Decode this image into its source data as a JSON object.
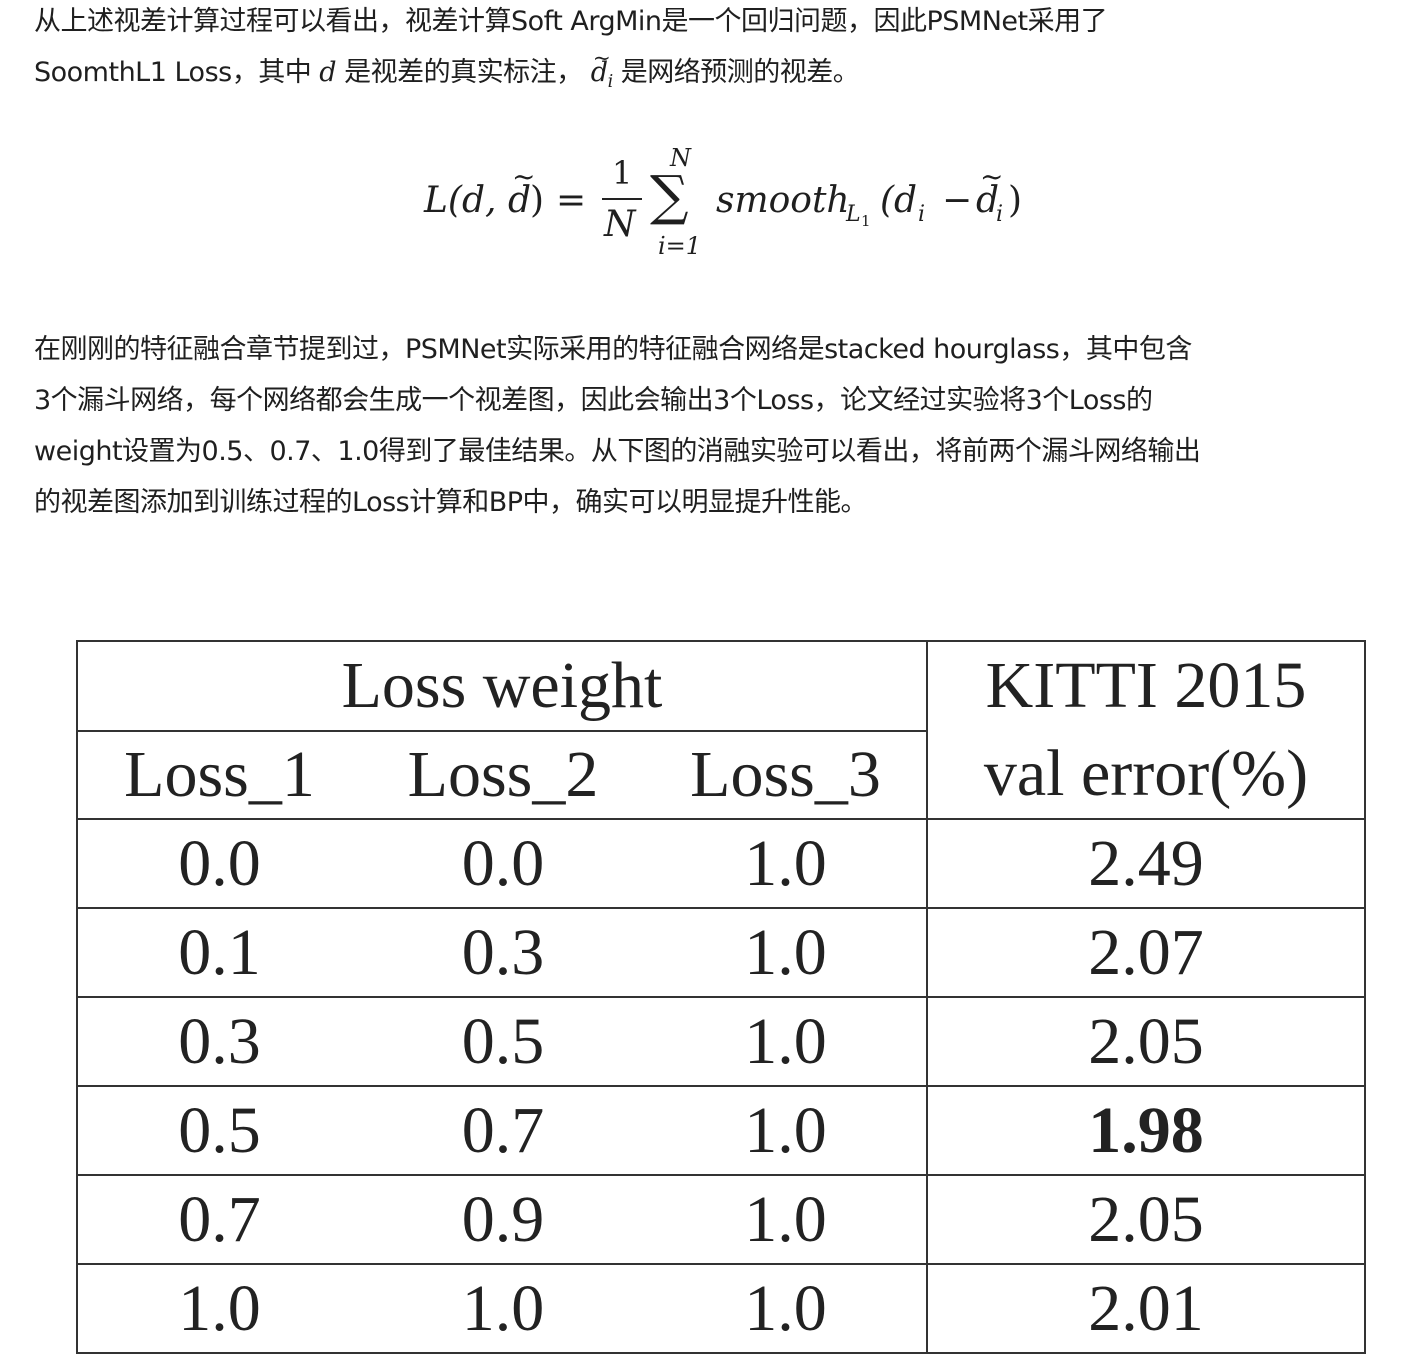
{
  "paragraph1": {
    "line1": "从上述视差计算过程可以看出，视差计算Soft ArgMin是一个回归问题，因此PSMNet采用了",
    "line2_a": "SoomthL1 Loss，其中 ",
    "var_d": "d",
    "line2_b": " 是视差的真实标注，",
    "var_di": "d",
    "var_di_sub": "i",
    "line2_c": " 是网络预测的视差。"
  },
  "formula": {
    "lhs": "L(d,",
    "lhs_d": "d",
    "lhs_close": ")",
    "eq": "=",
    "frac_num": "1",
    "frac_den": "N",
    "sum_top": "N",
    "sum_sign": "∑",
    "sum_bottom": "i=1",
    "func": "smooth",
    "func_sub": "L",
    "func_sub_sub": "1",
    "arg_open": "(d",
    "arg_i": "i",
    "minus": "−",
    "arg_d": "d",
    "arg_i2": "i",
    "arg_close": ")",
    "tilde": "~"
  },
  "paragraph2": {
    "line1": "在刚刚的特征融合章节提到过，PSMNet实际采用的特征融合网络是stacked hourglass，其中包含",
    "line2": "3个漏斗网络，每个网络都会生成一个视差图，因此会输出3个Loss，论文经过实验将3个Loss的",
    "line3": "weight设置为0.5、0.7、1.0得到了最佳结果。从下图的消融实验可以看出，将前两个漏斗网络输出",
    "line4": "的视差图添加到训练过程的Loss计算和BP中，确实可以明显提升性能。"
  },
  "table": {
    "group_header": "Loss weight",
    "metric_header_1": "KITTI 2015",
    "metric_header_2": "val error(%)",
    "columns": [
      "Loss_1",
      "Loss_2",
      "Loss_3"
    ],
    "rows": [
      [
        "0.0",
        "0.0",
        "1.0",
        "2.49"
      ],
      [
        "0.1",
        "0.3",
        "1.0",
        "2.07"
      ],
      [
        "0.3",
        "0.5",
        "1.0",
        "2.05"
      ],
      [
        "0.5",
        "0.7",
        "1.0",
        "1.98"
      ],
      [
        "0.7",
        "0.9",
        "1.0",
        "2.05"
      ],
      [
        "1.0",
        "1.0",
        "1.0",
        "2.01"
      ]
    ],
    "best_value": "1.98"
  }
}
